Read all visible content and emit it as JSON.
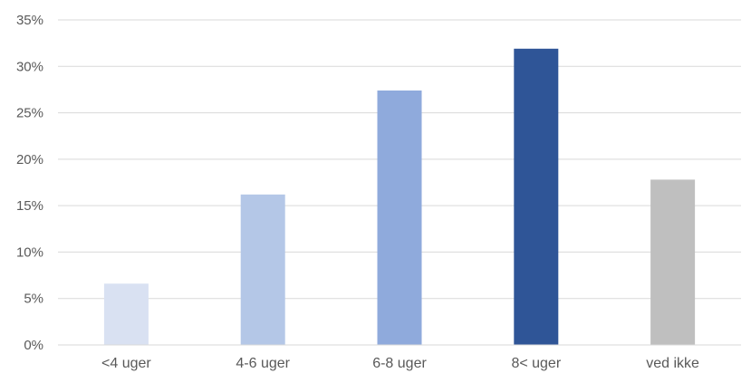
{
  "chart_data": {
    "type": "bar",
    "categories": [
      "<4 uger",
      "4-6 uger",
      "6-8 uger",
      "8< uger",
      "ved ikke"
    ],
    "values": [
      6.6,
      16.2,
      27.4,
      31.9,
      17.8
    ],
    "colors": [
      "#d9e1f2",
      "#b4c7e7",
      "#8faadc",
      "#2f5597",
      "#bfbfbf"
    ],
    "y_ticks": [
      0,
      5,
      10,
      15,
      20,
      25,
      30,
      35
    ],
    "y_tick_labels": [
      "0%",
      "5%",
      "10%",
      "15%",
      "20%",
      "25%",
      "30%",
      "35%"
    ],
    "ylim": [
      0,
      35
    ],
    "grid": true,
    "legend": "none",
    "title": "",
    "xlabel": "",
    "ylabel": ""
  }
}
